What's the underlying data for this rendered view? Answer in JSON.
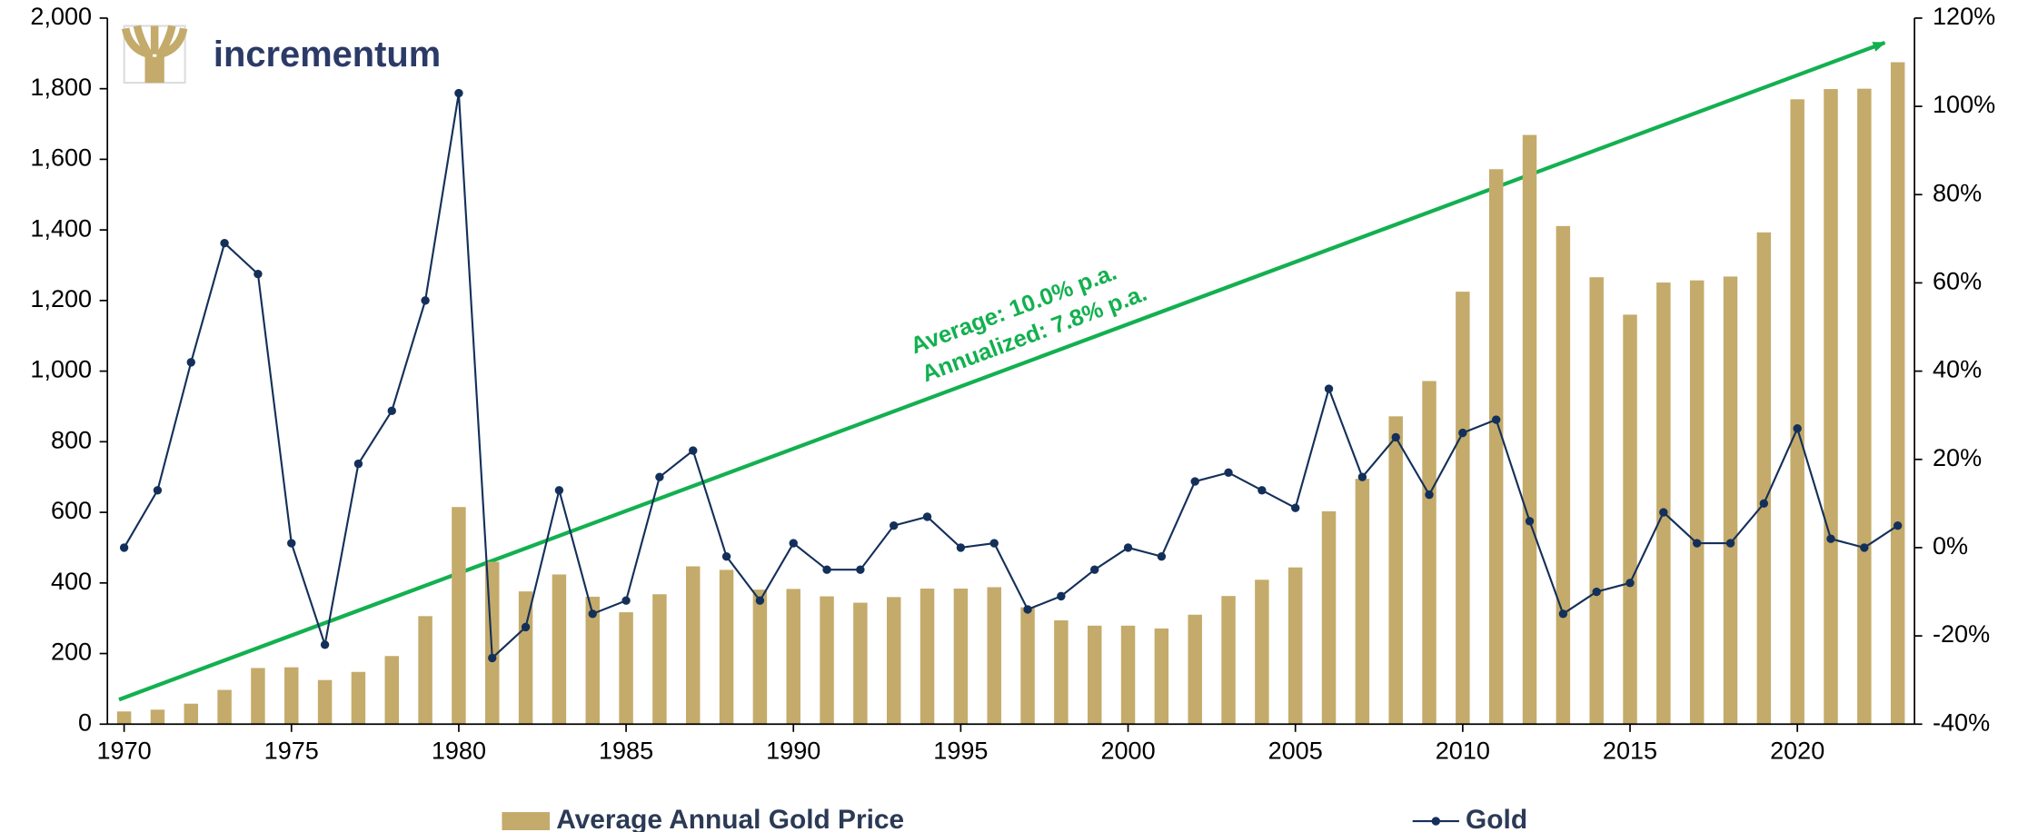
{
  "chart_data": {
    "type": "bar_line",
    "brand": "incrementum",
    "annotations": [
      "Average: 10.0% p.a.",
      "Annualized: 7.8% p.a."
    ],
    "x": [
      1970,
      1971,
      1972,
      1973,
      1974,
      1975,
      1976,
      1977,
      1978,
      1979,
      1980,
      1981,
      1982,
      1983,
      1984,
      1985,
      1986,
      1987,
      1988,
      1989,
      1990,
      1991,
      1992,
      1993,
      1994,
      1995,
      1996,
      1997,
      1998,
      1999,
      2000,
      2001,
      2002,
      2003,
      2004,
      2005,
      2006,
      2007,
      2008,
      2009,
      2010,
      2011,
      2012,
      2013,
      2014,
      2015,
      2016,
      2017,
      2018,
      2019,
      2020,
      2021,
      2022,
      2023
    ],
    "series": [
      {
        "name": "Average Annual Gold Price",
        "kind": "bar",
        "color": "#c4ab6b",
        "values": [
          36,
          41,
          58,
          97,
          159,
          161,
          125,
          148,
          193,
          306,
          615,
          460,
          376,
          424,
          361,
          317,
          368,
          447,
          437,
          381,
          383,
          362,
          344,
          360,
          384,
          384,
          388,
          331,
          294,
          279,
          279,
          271,
          310,
          363,
          409,
          444,
          603,
          695,
          872,
          972,
          1225,
          1572,
          1669,
          1411,
          1266,
          1160,
          1251,
          1257,
          1268,
          1393,
          1770,
          1799,
          1800,
          1875
        ]
      },
      {
        "name": "Gold",
        "kind": "line",
        "axis": "y2",
        "color": "#14305a",
        "values": [
          0,
          13,
          42,
          69,
          62,
          1,
          -22,
          19,
          31,
          56,
          103,
          -25,
          -18,
          13,
          -15,
          -12,
          16,
          22,
          -2,
          -12,
          1,
          -5,
          -5,
          5,
          7,
          0,
          1,
          -14,
          -11,
          -5,
          0,
          -2,
          15,
          17,
          13,
          9,
          36,
          16,
          25,
          12,
          26,
          29,
          6,
          -15,
          -10,
          -8,
          8,
          1,
          1,
          10,
          27,
          2,
          0,
          5
        ]
      }
    ],
    "xlim": [
      1969.5,
      2023.5
    ],
    "xticks": [
      1970,
      1975,
      1980,
      1985,
      1990,
      1995,
      2000,
      2005,
      2010,
      2015,
      2020
    ],
    "ylim": [
      0,
      2000
    ],
    "yticks": [
      0,
      {
        "value": 200,
        "label": "200"
      },
      400,
      600,
      800,
      {
        "value": 1000,
        "label": "1,000"
      },
      {
        "value": 1200,
        "label": "1,200"
      },
      {
        "value": 1400,
        "label": "1,400"
      },
      {
        "value": 1600,
        "label": "1,600"
      },
      {
        "value": 1800,
        "label": "1,800"
      },
      {
        "value": 2000,
        "label": "2,000"
      }
    ],
    "y2lim": [
      -40,
      120
    ],
    "y2ticks": [
      {
        "value": -40,
        "label": "-40%"
      },
      {
        "value": -20,
        "label": "-20%"
      },
      {
        "value": 0,
        "label": "0%"
      },
      {
        "value": 20,
        "label": "20%"
      },
      {
        "value": 40,
        "label": "40%"
      },
      {
        "value": 60,
        "label": "60%"
      },
      {
        "value": 80,
        "label": "80%"
      },
      {
        "value": 100,
        "label": "100%"
      },
      {
        "value": 120,
        "label": "120%"
      }
    ],
    "grid": false
  }
}
